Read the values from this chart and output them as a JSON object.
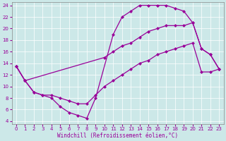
{
  "xlabel": "Windchill (Refroidissement éolien,°C)",
  "bg_color": "#cce8e8",
  "grid_color": "#ffffff",
  "line_color": "#990099",
  "xlim": [
    -0.5,
    23.5
  ],
  "ylim": [
    3.5,
    24.5
  ],
  "xticks": [
    0,
    1,
    2,
    3,
    4,
    5,
    6,
    7,
    8,
    9,
    10,
    11,
    12,
    13,
    14,
    15,
    16,
    17,
    18,
    19,
    20,
    21,
    22,
    23
  ],
  "yticks": [
    4,
    6,
    8,
    10,
    12,
    14,
    16,
    18,
    20,
    22,
    24
  ],
  "curve1_x": [
    0,
    1,
    2,
    3,
    4,
    5,
    6,
    7,
    8,
    9,
    11,
    12,
    13,
    14,
    15,
    16,
    17,
    18,
    19,
    20,
    21,
    22,
    23
  ],
  "curve1_y": [
    13.5,
    11.0,
    9.0,
    8.5,
    8.0,
    6.5,
    5.5,
    5.0,
    4.5,
    8.0,
    19.0,
    22.0,
    23.0,
    24.0,
    24.0,
    24.0,
    24.0,
    23.5,
    23.0,
    21.0,
    16.5,
    15.5,
    13.0
  ],
  "curve2_x": [
    0,
    1,
    10,
    11,
    12,
    13,
    14,
    15,
    16,
    17,
    18,
    19,
    20,
    21,
    22,
    23
  ],
  "curve2_y": [
    13.5,
    11.0,
    15.0,
    16.0,
    17.0,
    17.5,
    18.5,
    19.5,
    20.0,
    20.5,
    20.5,
    20.5,
    21.0,
    16.5,
    15.5,
    13.0
  ],
  "curve3_x": [
    0,
    1,
    2,
    3,
    4,
    5,
    6,
    7,
    8,
    9,
    10,
    11,
    12,
    13,
    14,
    15,
    16,
    17,
    18,
    19,
    20,
    21,
    22,
    23
  ],
  "curve3_y": [
    13.5,
    11.0,
    9.0,
    8.5,
    8.5,
    8.0,
    7.5,
    7.0,
    7.0,
    8.5,
    10.0,
    11.0,
    12.0,
    13.0,
    14.0,
    14.5,
    15.5,
    16.0,
    16.5,
    17.0,
    17.5,
    12.5,
    12.5,
    13.0
  ]
}
